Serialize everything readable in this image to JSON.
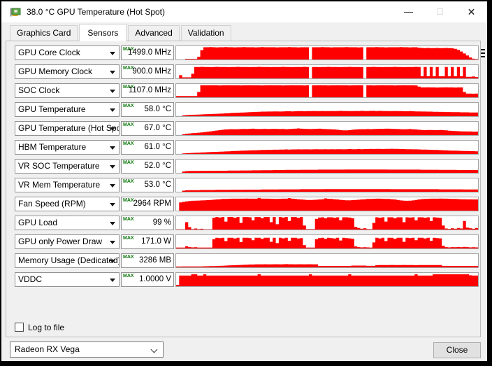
{
  "window": {
    "title": "38.0 °C GPU Temperature (Hot Spot)",
    "minimize_glyph": "—",
    "maximize_glyph": "☐",
    "close_glyph": "✕"
  },
  "tabs": [
    {
      "label": "Graphics Card"
    },
    {
      "label": "Sensors"
    },
    {
      "label": "Advanced"
    },
    {
      "label": "Validation"
    }
  ],
  "toolbar_icons": [
    "camera-icon",
    "refresh-icon",
    "menu-icon"
  ],
  "colors": {
    "graph_red": "#ff0000",
    "max_green": "#0d7a0d",
    "card_green": "#55a548",
    "connector_gold": "#c9a227"
  },
  "footer": {
    "log_label": "Log to file",
    "device": "Radeon RX Vega",
    "close_label": "Close"
  },
  "max_label": "MAX",
  "sensors": [
    {
      "label": "GPU Core Clock",
      "value": "1499.0 MHz",
      "series": [
        0,
        0,
        0,
        5,
        5,
        5,
        5,
        20,
        70,
        92,
        92,
        93,
        92,
        91,
        92,
        92,
        93,
        92,
        92,
        91,
        92,
        92,
        93,
        92,
        92,
        92,
        91,
        92,
        93,
        92,
        92,
        92,
        92,
        91,
        92,
        92,
        92,
        93,
        92,
        92,
        91,
        92,
        92,
        92,
        0,
        92,
        92,
        92,
        93,
        92,
        92,
        91,
        92,
        92,
        92,
        92,
        93,
        92,
        92,
        92,
        91,
        92,
        0,
        92,
        92,
        92,
        93,
        92,
        92,
        91,
        92,
        92,
        92,
        92,
        93,
        92,
        92,
        91,
        92,
        92,
        88,
        87,
        86,
        87,
        86,
        86,
        87,
        86,
        86,
        87,
        86,
        84,
        80,
        72,
        60,
        45,
        30,
        15,
        6,
        3
      ]
    },
    {
      "label": "GPU Memory Clock",
      "value": "900.0 MHz",
      "series": [
        0,
        24,
        8,
        8,
        8,
        35,
        86,
        86,
        87,
        86,
        86,
        85,
        86,
        87,
        86,
        86,
        86,
        85,
        86,
        86,
        87,
        86,
        86,
        86,
        85,
        86,
        86,
        87,
        86,
        86,
        86,
        85,
        86,
        86,
        86,
        87,
        86,
        86,
        85,
        86,
        86,
        86,
        87,
        86,
        0,
        86,
        86,
        85,
        86,
        86,
        87,
        86,
        86,
        86,
        85,
        86,
        86,
        87,
        86,
        86,
        86,
        85,
        0,
        86,
        86,
        87,
        86,
        86,
        85,
        86,
        86,
        86,
        87,
        86,
        86,
        85,
        86,
        86,
        86,
        87,
        86,
        16,
        86,
        16,
        86,
        16,
        86,
        16,
        16,
        86,
        16,
        86,
        16,
        86,
        16,
        86,
        12,
        12,
        14,
        10
      ]
    },
    {
      "label": "SOC Clock",
      "value": "1107.0 MHz",
      "series": [
        9,
        9,
        9,
        9,
        9,
        9,
        9,
        40,
        90,
        90,
        90,
        91,
        90,
        90,
        89,
        90,
        90,
        91,
        90,
        90,
        90,
        89,
        90,
        90,
        91,
        90,
        90,
        90,
        89,
        90,
        90,
        91,
        90,
        90,
        90,
        89,
        90,
        90,
        91,
        90,
        90,
        90,
        89,
        90,
        0,
        90,
        90,
        91,
        90,
        90,
        89,
        90,
        90,
        91,
        90,
        90,
        90,
        89,
        90,
        90,
        91,
        90,
        0,
        90,
        90,
        89,
        90,
        90,
        91,
        90,
        90,
        90,
        89,
        90,
        90,
        91,
        90,
        90,
        90,
        89,
        80,
        74,
        74,
        75,
        74,
        74,
        73,
        74,
        74,
        75,
        74,
        74,
        73,
        74,
        74,
        40,
        28,
        28,
        27,
        28
      ]
    },
    {
      "label": "GPU Temperature",
      "value": "58.0 °C",
      "series": [
        0,
        0,
        6,
        8,
        9,
        10,
        11,
        12,
        13,
        14,
        15,
        16,
        17,
        18,
        19,
        20,
        21,
        22,
        24,
        25,
        26,
        27,
        28,
        29,
        30,
        31,
        32,
        33,
        34,
        34,
        35,
        35,
        36,
        36,
        35,
        36,
        37,
        37,
        36,
        37,
        38,
        38,
        37,
        38,
        38,
        39,
        38,
        38,
        39,
        38,
        38,
        39,
        38,
        39,
        40,
        39,
        39,
        38,
        38,
        39,
        39,
        40,
        39,
        39,
        40,
        40,
        39,
        40,
        39,
        39,
        38,
        38,
        39,
        38,
        38,
        37,
        37,
        38,
        37,
        36,
        36,
        35,
        35,
        34,
        34,
        33,
        33,
        32,
        32,
        31,
        31,
        30,
        30,
        30,
        29,
        29,
        29,
        28,
        28,
        28
      ]
    },
    {
      "label": "GPU Temperature (Hot Spot)",
      "value": "67.0 °C",
      "series": [
        0,
        0,
        6,
        10,
        12,
        14,
        16,
        18,
        20,
        22,
        25,
        28,
        31,
        34,
        37,
        40,
        42,
        43,
        44,
        43,
        44,
        45,
        46,
        45,
        47,
        48,
        46,
        45,
        46,
        47,
        45,
        46,
        47,
        46,
        45,
        46,
        44,
        45,
        47,
        48,
        50,
        48,
        47,
        46,
        45,
        46,
        47,
        48,
        46,
        45,
        44,
        43,
        42,
        40,
        37,
        36,
        36,
        37,
        40,
        42,
        43,
        44,
        44,
        45,
        44,
        45,
        46,
        47,
        47,
        48,
        48,
        47,
        46,
        45,
        44,
        43,
        44,
        45,
        43,
        42,
        40,
        38,
        37,
        38,
        38,
        37,
        37,
        38,
        37,
        36,
        33,
        31,
        30,
        29,
        28,
        28,
        27,
        27,
        26,
        26
      ]
    },
    {
      "label": "HBM Temperature",
      "value": "61.0 °C",
      "series": [
        0,
        0,
        4,
        6,
        7,
        8,
        9,
        10,
        11,
        12,
        13,
        14,
        15,
        16,
        17,
        18,
        19,
        20,
        21,
        22,
        23,
        24,
        25,
        26,
        27,
        28,
        28,
        29,
        30,
        30,
        31,
        31,
        32,
        32,
        33,
        33,
        34,
        33,
        34,
        34,
        35,
        34,
        35,
        35,
        34,
        35,
        36,
        35,
        35,
        36,
        35,
        36,
        35,
        36,
        36,
        35,
        36,
        37,
        36,
        36,
        37,
        36,
        37,
        37,
        38,
        37,
        38,
        38,
        37,
        38,
        38,
        39,
        38,
        38,
        37,
        37,
        36,
        36,
        35,
        35,
        34,
        33,
        33,
        32,
        31,
        30,
        30,
        29,
        28,
        27,
        26,
        25,
        25,
        24,
        23,
        22,
        22,
        21,
        21,
        20
      ]
    },
    {
      "label": "VR SOC Temperature",
      "value": "52.0 °C",
      "series": [
        0,
        0,
        10,
        13,
        14,
        14,
        14,
        14,
        15,
        15,
        15,
        15,
        15,
        16,
        16,
        16,
        16,
        17,
        17,
        17,
        17,
        18,
        18,
        18,
        18,
        19,
        19,
        19,
        20,
        20,
        20,
        20,
        21,
        21,
        21,
        21,
        22,
        22,
        22,
        22,
        22,
        23,
        23,
        23,
        23,
        23,
        23,
        24,
        24,
        24,
        24,
        24,
        24,
        24,
        24,
        24,
        25,
        25,
        25,
        25,
        25,
        25,
        25,
        25,
        25,
        25,
        25,
        25,
        25,
        25,
        24,
        24,
        24,
        24,
        24,
        24,
        24,
        24,
        24,
        24,
        24,
        23,
        23,
        23,
        23,
        23,
        23,
        22,
        22,
        22,
        22,
        22,
        22,
        21,
        21,
        21,
        21,
        21,
        21,
        21
      ]
    },
    {
      "label": "VR Mem Temperature",
      "value": "53.0 °C",
      "series": [
        0,
        0,
        8,
        11,
        12,
        12,
        12,
        12,
        13,
        13,
        13,
        13,
        13,
        14,
        14,
        14,
        14,
        14,
        15,
        15,
        15,
        15,
        15,
        16,
        16,
        16,
        16,
        16,
        17,
        17,
        17,
        17,
        17,
        17,
        18,
        18,
        18,
        18,
        18,
        18,
        18,
        19,
        19,
        19,
        19,
        19,
        19,
        19,
        19,
        20,
        20,
        20,
        20,
        20,
        20,
        20,
        20,
        20,
        20,
        20,
        20,
        20,
        20,
        20,
        20,
        20,
        20,
        20,
        20,
        20,
        20,
        19,
        19,
        19,
        19,
        19,
        19,
        19,
        19,
        19,
        19,
        19,
        19,
        19,
        19,
        19,
        19,
        18,
        18,
        18,
        18,
        18,
        18,
        18,
        18,
        17,
        17,
        17,
        17,
        17
      ]
    },
    {
      "label": "Fan Speed (RPM)",
      "value": "2964 RPM",
      "series": [
        0,
        62,
        66,
        70,
        72,
        74,
        75,
        76,
        77,
        78,
        79,
        80,
        82,
        84,
        86,
        88,
        88,
        89,
        90,
        90,
        90,
        90,
        90,
        91,
        90,
        90,
        90,
        95,
        90,
        90,
        90,
        89,
        88,
        88,
        89,
        90,
        90,
        94,
        90,
        88,
        86,
        84,
        82,
        80,
        80,
        81,
        82,
        84,
        86,
        92,
        89,
        88,
        86,
        84,
        81,
        79,
        78,
        78,
        79,
        80,
        82,
        84,
        86,
        88,
        88,
        89,
        90,
        90,
        89,
        88,
        88,
        86,
        84,
        80,
        77,
        75,
        74,
        75,
        77,
        80,
        84,
        87,
        88,
        89,
        90,
        90,
        90,
        91,
        90,
        90,
        89,
        88,
        88,
        87,
        86,
        86,
        85,
        85,
        84,
        84
      ]
    },
    {
      "label": "GPU Load",
      "value": "99 %",
      "series": [
        2,
        2,
        2,
        55,
        18,
        3,
        8,
        3,
        6,
        2,
        2,
        2,
        88,
        94,
        90,
        94,
        60,
        94,
        94,
        88,
        94,
        50,
        94,
        94,
        92,
        70,
        94,
        94,
        85,
        94,
        94,
        55,
        94,
        40,
        94,
        90,
        94,
        65,
        94,
        94,
        88,
        94,
        30,
        3,
        3,
        3,
        80,
        90,
        92,
        85,
        92,
        92,
        88,
        92,
        70,
        92,
        92,
        90,
        85,
        20,
        12,
        6,
        10,
        4,
        3,
        50,
        92,
        88,
        92,
        60,
        92,
        92,
        85,
        92,
        92,
        55,
        92,
        90,
        92,
        70,
        92,
        92,
        88,
        92,
        65,
        92,
        90,
        88,
        30,
        8,
        5,
        10,
        6,
        12,
        8,
        65,
        14,
        10,
        6,
        12
      ]
    },
    {
      "label": "GPU only Power Draw",
      "value": "171.0 W",
      "series": [
        7,
        7,
        7,
        16,
        10,
        8,
        9,
        7,
        7,
        7,
        7,
        7,
        70,
        80,
        78,
        80,
        55,
        80,
        80,
        75,
        80,
        48,
        80,
        80,
        78,
        62,
        80,
        80,
        72,
        80,
        80,
        50,
        80,
        40,
        80,
        76,
        80,
        58,
        80,
        80,
        75,
        78,
        25,
        7,
        7,
        7,
        70,
        78,
        80,
        72,
        80,
        78,
        75,
        80,
        60,
        80,
        78,
        76,
        72,
        15,
        10,
        8,
        9,
        8,
        7,
        45,
        80,
        75,
        80,
        55,
        80,
        80,
        72,
        80,
        80,
        50,
        80,
        78,
        80,
        62,
        80,
        80,
        75,
        80,
        58,
        80,
        78,
        76,
        20,
        10,
        8,
        10,
        9,
        11,
        9,
        12,
        10,
        8,
        9,
        8
      ]
    },
    {
      "label": "Memory Usage (Dedicated)",
      "value": "3286 MB",
      "series": [
        6,
        6,
        7,
        7,
        7,
        7,
        7,
        7,
        7,
        8,
        8,
        9,
        9,
        10,
        11,
        12,
        13,
        14,
        15,
        16,
        17,
        18,
        19,
        20,
        21,
        21,
        22,
        22,
        22,
        23,
        22,
        22,
        23,
        23,
        22,
        23,
        24,
        23,
        23,
        22,
        23,
        23,
        22,
        23,
        23,
        22,
        22,
        10,
        10,
        10,
        10,
        10,
        10,
        10,
        10,
        10,
        10,
        10,
        13,
        13,
        13,
        13,
        13,
        11,
        11,
        11,
        16,
        17,
        17,
        17,
        17,
        18,
        17,
        17,
        17,
        18,
        17,
        17,
        17,
        16,
        17,
        17,
        17,
        17,
        17,
        17,
        17,
        17,
        11,
        10,
        10,
        10,
        10,
        10,
        10,
        10,
        10,
        10,
        10,
        10
      ]
    },
    {
      "label": "VDDC",
      "value": "1.0000 V",
      "series": [
        10,
        80,
        80,
        80,
        80,
        90,
        90,
        80,
        80,
        90,
        80,
        80,
        80,
        80,
        80,
        80,
        80,
        80,
        80,
        80,
        80,
        80,
        80,
        80,
        80,
        80,
        80,
        90,
        80,
        80,
        80,
        80,
        80,
        80,
        80,
        80,
        80,
        80,
        80,
        80,
        80,
        80,
        80,
        80,
        90,
        80,
        80,
        80,
        80,
        80,
        80,
        80,
        80,
        80,
        80,
        80,
        80,
        90,
        80,
        80,
        80,
        80,
        80,
        80,
        80,
        80,
        80,
        80,
        80,
        80,
        80,
        80,
        80,
        80,
        80,
        80,
        80,
        80,
        80,
        90,
        80,
        80,
        80,
        80,
        80,
        90,
        90,
        90,
        90,
        90,
        90,
        90,
        90,
        90,
        90,
        90,
        90,
        82,
        80,
        80
      ]
    }
  ]
}
